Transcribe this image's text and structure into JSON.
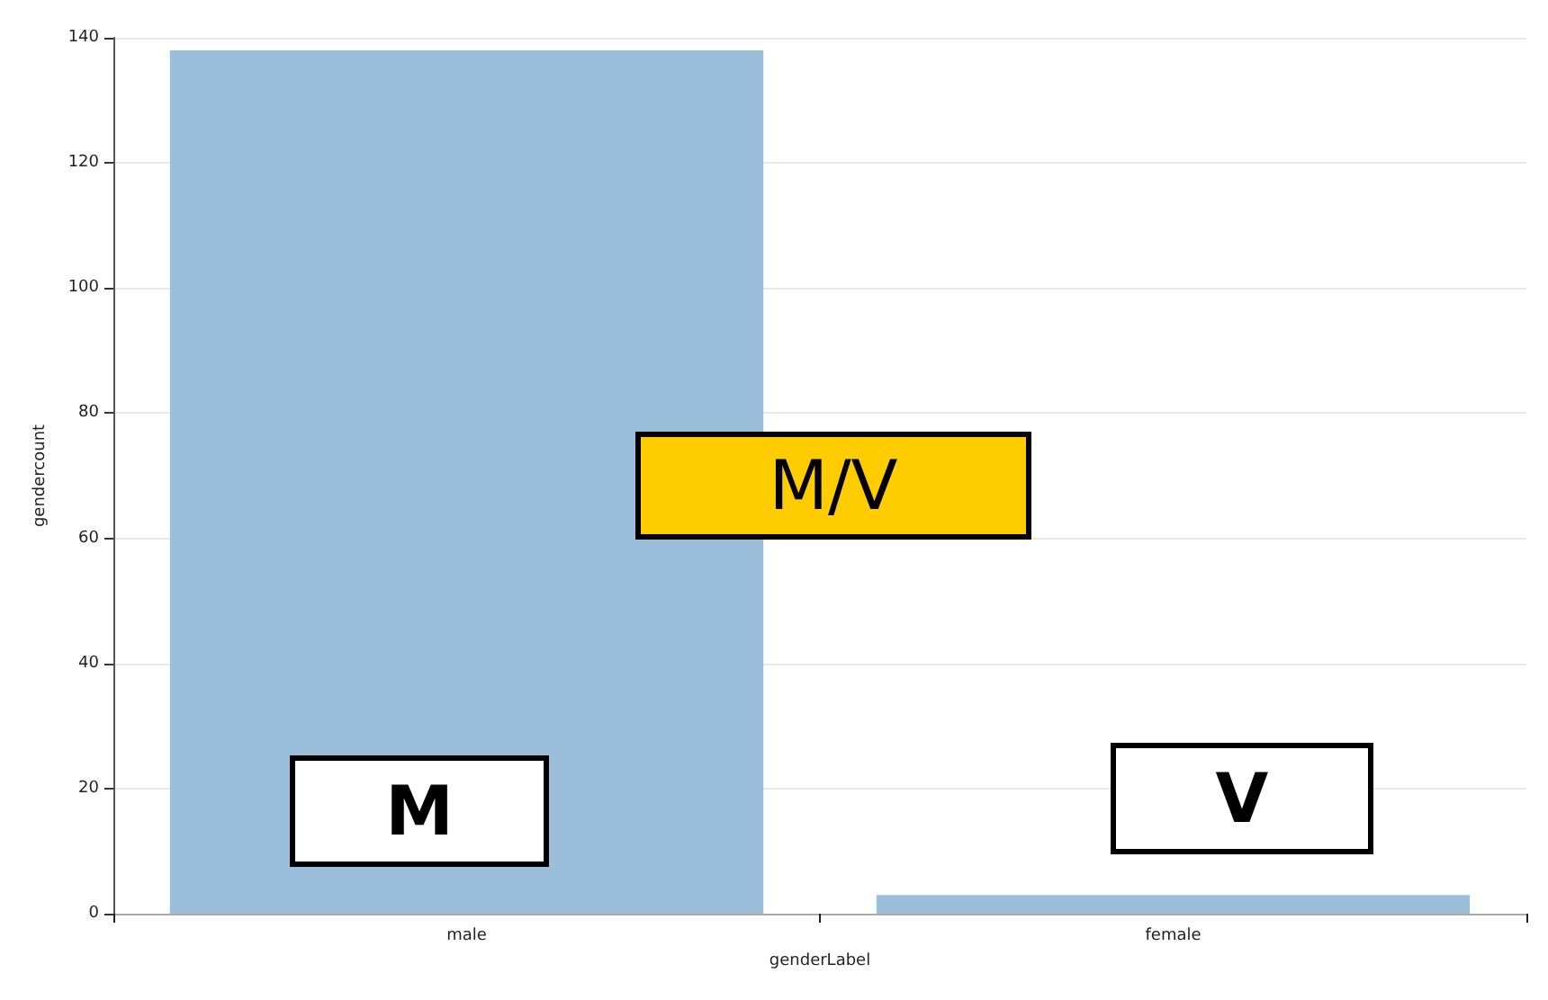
{
  "chart_data": {
    "type": "bar",
    "xlabel": "genderLabel",
    "ylabel": "gendercount",
    "categories": [
      "male",
      "female"
    ],
    "values": [
      138,
      3
    ],
    "color": "#9bbfdb",
    "ylim": [
      0,
      140
    ],
    "yticks": [
      0,
      20,
      40,
      60,
      80,
      100,
      120,
      140
    ],
    "grid": "y",
    "annotations": [
      "M/V",
      "M",
      "V"
    ]
  }
}
